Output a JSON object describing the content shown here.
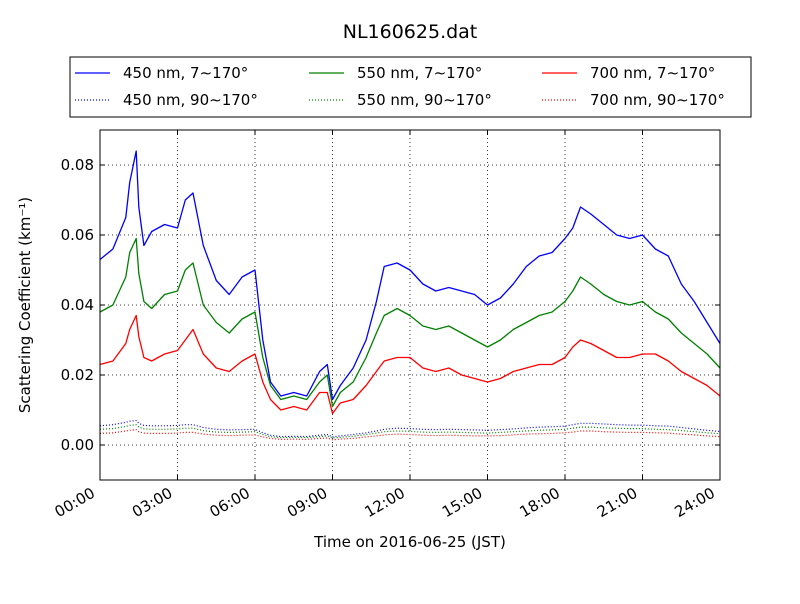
{
  "chart_data": {
    "type": "line",
    "title": "NL160625.dat",
    "xlabel": "Time on 2016-06-25 (JST)",
    "ylabel": "Scattering Coefficient (km⁻¹)",
    "xlim": [
      0,
      24
    ],
    "ylim": [
      -0.01,
      0.09
    ],
    "grid": true,
    "legend_position": "top",
    "x_ticks": [
      0,
      3,
      6,
      9,
      12,
      15,
      18,
      21,
      24
    ],
    "x_tick_labels": [
      "00:00",
      "03:00",
      "06:00",
      "09:00",
      "12:00",
      "15:00",
      "18:00",
      "21:00",
      "24:00"
    ],
    "y_ticks": [
      0.0,
      0.02,
      0.04,
      0.06,
      0.08
    ],
    "y_tick_labels": [
      "0.00",
      "0.02",
      "0.04",
      "0.06",
      "0.08"
    ],
    "x": [
      0,
      0.5,
      1.0,
      1.15,
      1.4,
      1.5,
      1.7,
      2.0,
      2.5,
      3.0,
      3.3,
      3.6,
      4.0,
      4.5,
      5.0,
      5.5,
      6.0,
      6.3,
      6.6,
      7.0,
      7.5,
      8.0,
      8.5,
      8.8,
      9.0,
      9.3,
      9.8,
      10.3,
      10.7,
      11.0,
      11.5,
      12.0,
      12.5,
      13.0,
      13.5,
      14.0,
      14.5,
      15.0,
      15.5,
      16.0,
      16.5,
      17.0,
      17.5,
      18.0,
      18.3,
      18.6,
      19.0,
      19.5,
      20.0,
      20.5,
      21.0,
      21.5,
      22.0,
      22.5,
      23.0,
      23.5,
      24.0
    ],
    "series": [
      {
        "name": "450 nm, 7∼170°",
        "color": "#0000ff",
        "style": "solid",
        "values": [
          0.053,
          0.056,
          0.065,
          0.075,
          0.084,
          0.068,
          0.057,
          0.061,
          0.063,
          0.062,
          0.07,
          0.072,
          0.057,
          0.047,
          0.043,
          0.048,
          0.05,
          0.03,
          0.018,
          0.014,
          0.015,
          0.014,
          0.021,
          0.023,
          0.013,
          0.017,
          0.022,
          0.03,
          0.041,
          0.051,
          0.052,
          0.05,
          0.046,
          0.044,
          0.045,
          0.044,
          0.043,
          0.04,
          0.042,
          0.046,
          0.051,
          0.054,
          0.055,
          0.059,
          0.062,
          0.068,
          0.066,
          0.063,
          0.06,
          0.059,
          0.06,
          0.056,
          0.054,
          0.046,
          0.041,
          0.035,
          0.029
        ]
      },
      {
        "name": "550 nm, 7∼170°",
        "color": "#008000",
        "style": "solid",
        "values": [
          0.038,
          0.04,
          0.048,
          0.055,
          0.059,
          0.049,
          0.041,
          0.039,
          0.043,
          0.044,
          0.05,
          0.052,
          0.04,
          0.035,
          0.032,
          0.036,
          0.038,
          0.025,
          0.017,
          0.013,
          0.014,
          0.013,
          0.018,
          0.02,
          0.011,
          0.015,
          0.018,
          0.025,
          0.032,
          0.037,
          0.039,
          0.037,
          0.034,
          0.033,
          0.034,
          0.032,
          0.03,
          0.028,
          0.03,
          0.033,
          0.035,
          0.037,
          0.038,
          0.041,
          0.044,
          0.048,
          0.046,
          0.043,
          0.041,
          0.04,
          0.041,
          0.038,
          0.036,
          0.032,
          0.029,
          0.026,
          0.022
        ]
      },
      {
        "name": "700 nm, 7∼170°",
        "color": "#ff0000",
        "style": "solid",
        "values": [
          0.023,
          0.024,
          0.029,
          0.033,
          0.037,
          0.031,
          0.025,
          0.024,
          0.026,
          0.027,
          0.03,
          0.033,
          0.026,
          0.022,
          0.021,
          0.024,
          0.026,
          0.018,
          0.013,
          0.01,
          0.011,
          0.01,
          0.015,
          0.015,
          0.009,
          0.012,
          0.013,
          0.017,
          0.021,
          0.024,
          0.025,
          0.025,
          0.022,
          0.021,
          0.022,
          0.02,
          0.019,
          0.018,
          0.019,
          0.021,
          0.022,
          0.023,
          0.023,
          0.025,
          0.028,
          0.03,
          0.029,
          0.027,
          0.025,
          0.025,
          0.026,
          0.026,
          0.024,
          0.021,
          0.019,
          0.017,
          0.014
        ]
      },
      {
        "name": "450 nm, 90∼170°",
        "color": "#0000ff",
        "style": "dotted",
        "values": [
          0.0055,
          0.0058,
          0.0065,
          0.0068,
          0.007,
          0.0062,
          0.0056,
          0.0055,
          0.0055,
          0.0056,
          0.0058,
          0.0058,
          0.005,
          0.0045,
          0.0043,
          0.0044,
          0.0045,
          0.0035,
          0.0028,
          0.0024,
          0.0025,
          0.0024,
          0.0028,
          0.003,
          0.0023,
          0.0026,
          0.003,
          0.0035,
          0.004,
          0.0045,
          0.0048,
          0.0047,
          0.0045,
          0.0044,
          0.0045,
          0.0044,
          0.0043,
          0.0042,
          0.0044,
          0.0046,
          0.0049,
          0.0051,
          0.0052,
          0.0054,
          0.0058,
          0.0062,
          0.0062,
          0.006,
          0.0058,
          0.0057,
          0.0057,
          0.0055,
          0.0054,
          0.005,
          0.0046,
          0.0042,
          0.0039
        ]
      },
      {
        "name": "550 nm, 90∼170°",
        "color": "#008000",
        "style": "dotted",
        "values": [
          0.0045,
          0.0047,
          0.0053,
          0.0056,
          0.0058,
          0.0051,
          0.0046,
          0.0045,
          0.0045,
          0.0046,
          0.0048,
          0.0048,
          0.0041,
          0.0037,
          0.0036,
          0.0037,
          0.0038,
          0.003,
          0.0024,
          0.0021,
          0.0022,
          0.0021,
          0.0024,
          0.0026,
          0.002,
          0.0022,
          0.0025,
          0.003,
          0.0034,
          0.0038,
          0.004,
          0.0039,
          0.0037,
          0.0036,
          0.0037,
          0.0036,
          0.0035,
          0.0034,
          0.0036,
          0.0038,
          0.004,
          0.0042,
          0.0043,
          0.0045,
          0.0048,
          0.0051,
          0.0051,
          0.0049,
          0.0048,
          0.0047,
          0.0047,
          0.0045,
          0.0044,
          0.0041,
          0.0038,
          0.0035,
          0.0032
        ]
      },
      {
        "name": "700 nm, 90∼170°",
        "color": "#ff0000",
        "style": "dotted",
        "values": [
          0.0033,
          0.0035,
          0.004,
          0.0042,
          0.0044,
          0.0038,
          0.0034,
          0.0033,
          0.0033,
          0.0034,
          0.0036,
          0.0036,
          0.0031,
          0.0028,
          0.0027,
          0.0028,
          0.0029,
          0.0023,
          0.0019,
          0.0016,
          0.0017,
          0.0016,
          0.0019,
          0.002,
          0.0015,
          0.0017,
          0.0019,
          0.0023,
          0.0026,
          0.0029,
          0.0031,
          0.003,
          0.0028,
          0.0027,
          0.0028,
          0.0027,
          0.0026,
          0.0026,
          0.0027,
          0.0029,
          0.0031,
          0.0032,
          0.0033,
          0.0035,
          0.0037,
          0.004,
          0.004,
          0.0038,
          0.0037,
          0.0036,
          0.0036,
          0.0035,
          0.0034,
          0.0031,
          0.0029,
          0.0026,
          0.0024
        ]
      }
    ]
  }
}
